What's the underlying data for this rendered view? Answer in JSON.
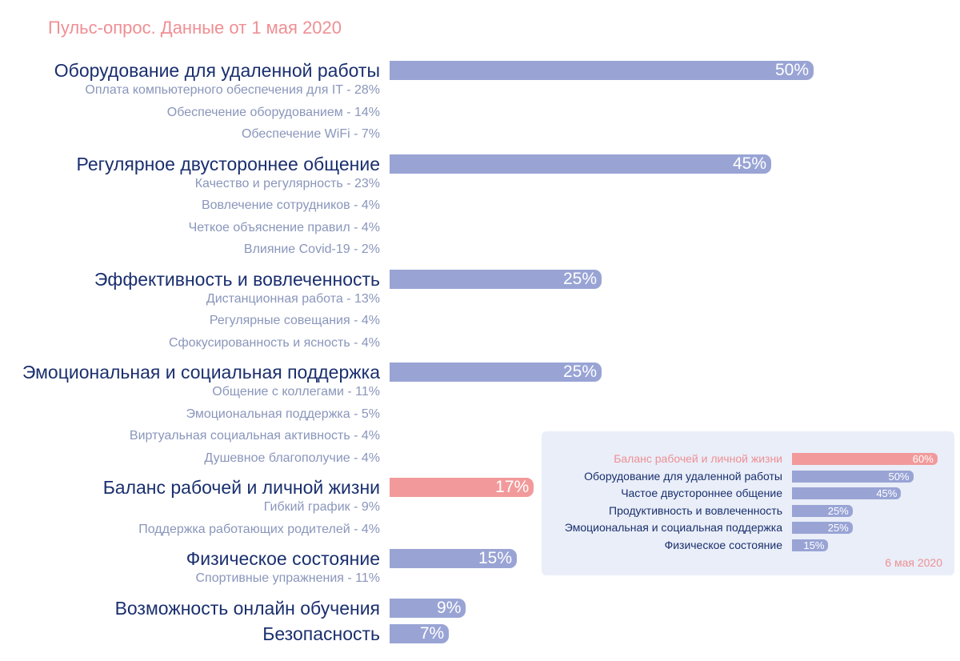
{
  "title": "Пульс-опрос. Данные от 1 мая 2020",
  "chart_data": [
    {
      "type": "bar",
      "orientation": "horizontal",
      "title": "Пульс-опрос. Данные от 1 мая 2020",
      "xlim": [
        0,
        100
      ],
      "highlight_color": "#f29a9b",
      "bar_color": "#99a4d5",
      "categories": [
        {
          "label": "Оборудование для удаленной работы",
          "value": 50,
          "value_label": "50%",
          "highlight": false,
          "subitems": [
            "Оплата компьютерного обеспечения для IT - 28%",
            "Обеспечение оборудованием - 14%",
            "Обеспечение WiFi - 7%"
          ]
        },
        {
          "label": "Регулярное двустороннее общение",
          "value": 45,
          "value_label": "45%",
          "highlight": false,
          "subitems": [
            "Качество и регулярность - 23%",
            "Вовлечение сотрудников - 4%",
            "Четкое объяснение правил - 4%",
            "Влияние Covid-19 - 2%"
          ]
        },
        {
          "label": "Эффективность и вовлеченность",
          "value": 25,
          "value_label": "25%",
          "highlight": false,
          "subitems": [
            "Дистанционная работа - 13%",
            "Регулярные совещания - 4%",
            "Сфокусированность и ясность - 4%"
          ]
        },
        {
          "label": "Эмоциональная и социальная поддержка",
          "value": 25,
          "value_label": "25%",
          "highlight": false,
          "subitems": [
            "Общение с коллегами - 11%",
            "Эмоциональная поддержка - 5%",
            "Виртуальная социальная активность - 4%",
            "Душевное благополучие - 4%"
          ]
        },
        {
          "label": "Баланс рабочей и личной жизни",
          "value": 17,
          "value_label": "17%",
          "highlight": true,
          "subitems": [
            "Гибкий график - 9%",
            "Поддержка работающих родителей - 4%"
          ]
        },
        {
          "label": "Физическое состояние",
          "value": 15,
          "value_label": "15%",
          "highlight": false,
          "subitems": [
            "Спортивные упражнения - 11%"
          ]
        },
        {
          "label": "Возможность онлайн обучения",
          "value": 9,
          "value_label": "9%",
          "highlight": false,
          "subitems": []
        },
        {
          "label": "Безопасность",
          "value": 7,
          "value_label": "7%",
          "highlight": false,
          "subitems": []
        }
      ]
    },
    {
      "type": "bar",
      "orientation": "horizontal",
      "note": "6 мая 2020",
      "xlim": [
        0,
        100
      ],
      "categories": [
        {
          "label": "Баланс рабочей и личной жизни",
          "value": 60,
          "value_label": "60%",
          "highlight": true
        },
        {
          "label": "Оборудование для удаленной работы",
          "value": 50,
          "value_label": "50%",
          "highlight": false
        },
        {
          "label": "Частое двустороннее общение",
          "value": 45,
          "value_label": "45%",
          "highlight": false
        },
        {
          "label": "Продуктивность и вовлеченность",
          "value": 25,
          "value_label": "25%",
          "highlight": false
        },
        {
          "label": "Эмоциональная и социальная поддержка",
          "value": 25,
          "value_label": "25%",
          "highlight": false
        },
        {
          "label": "Физическое состояние",
          "value": 15,
          "value_label": "15%",
          "highlight": false
        }
      ]
    }
  ]
}
